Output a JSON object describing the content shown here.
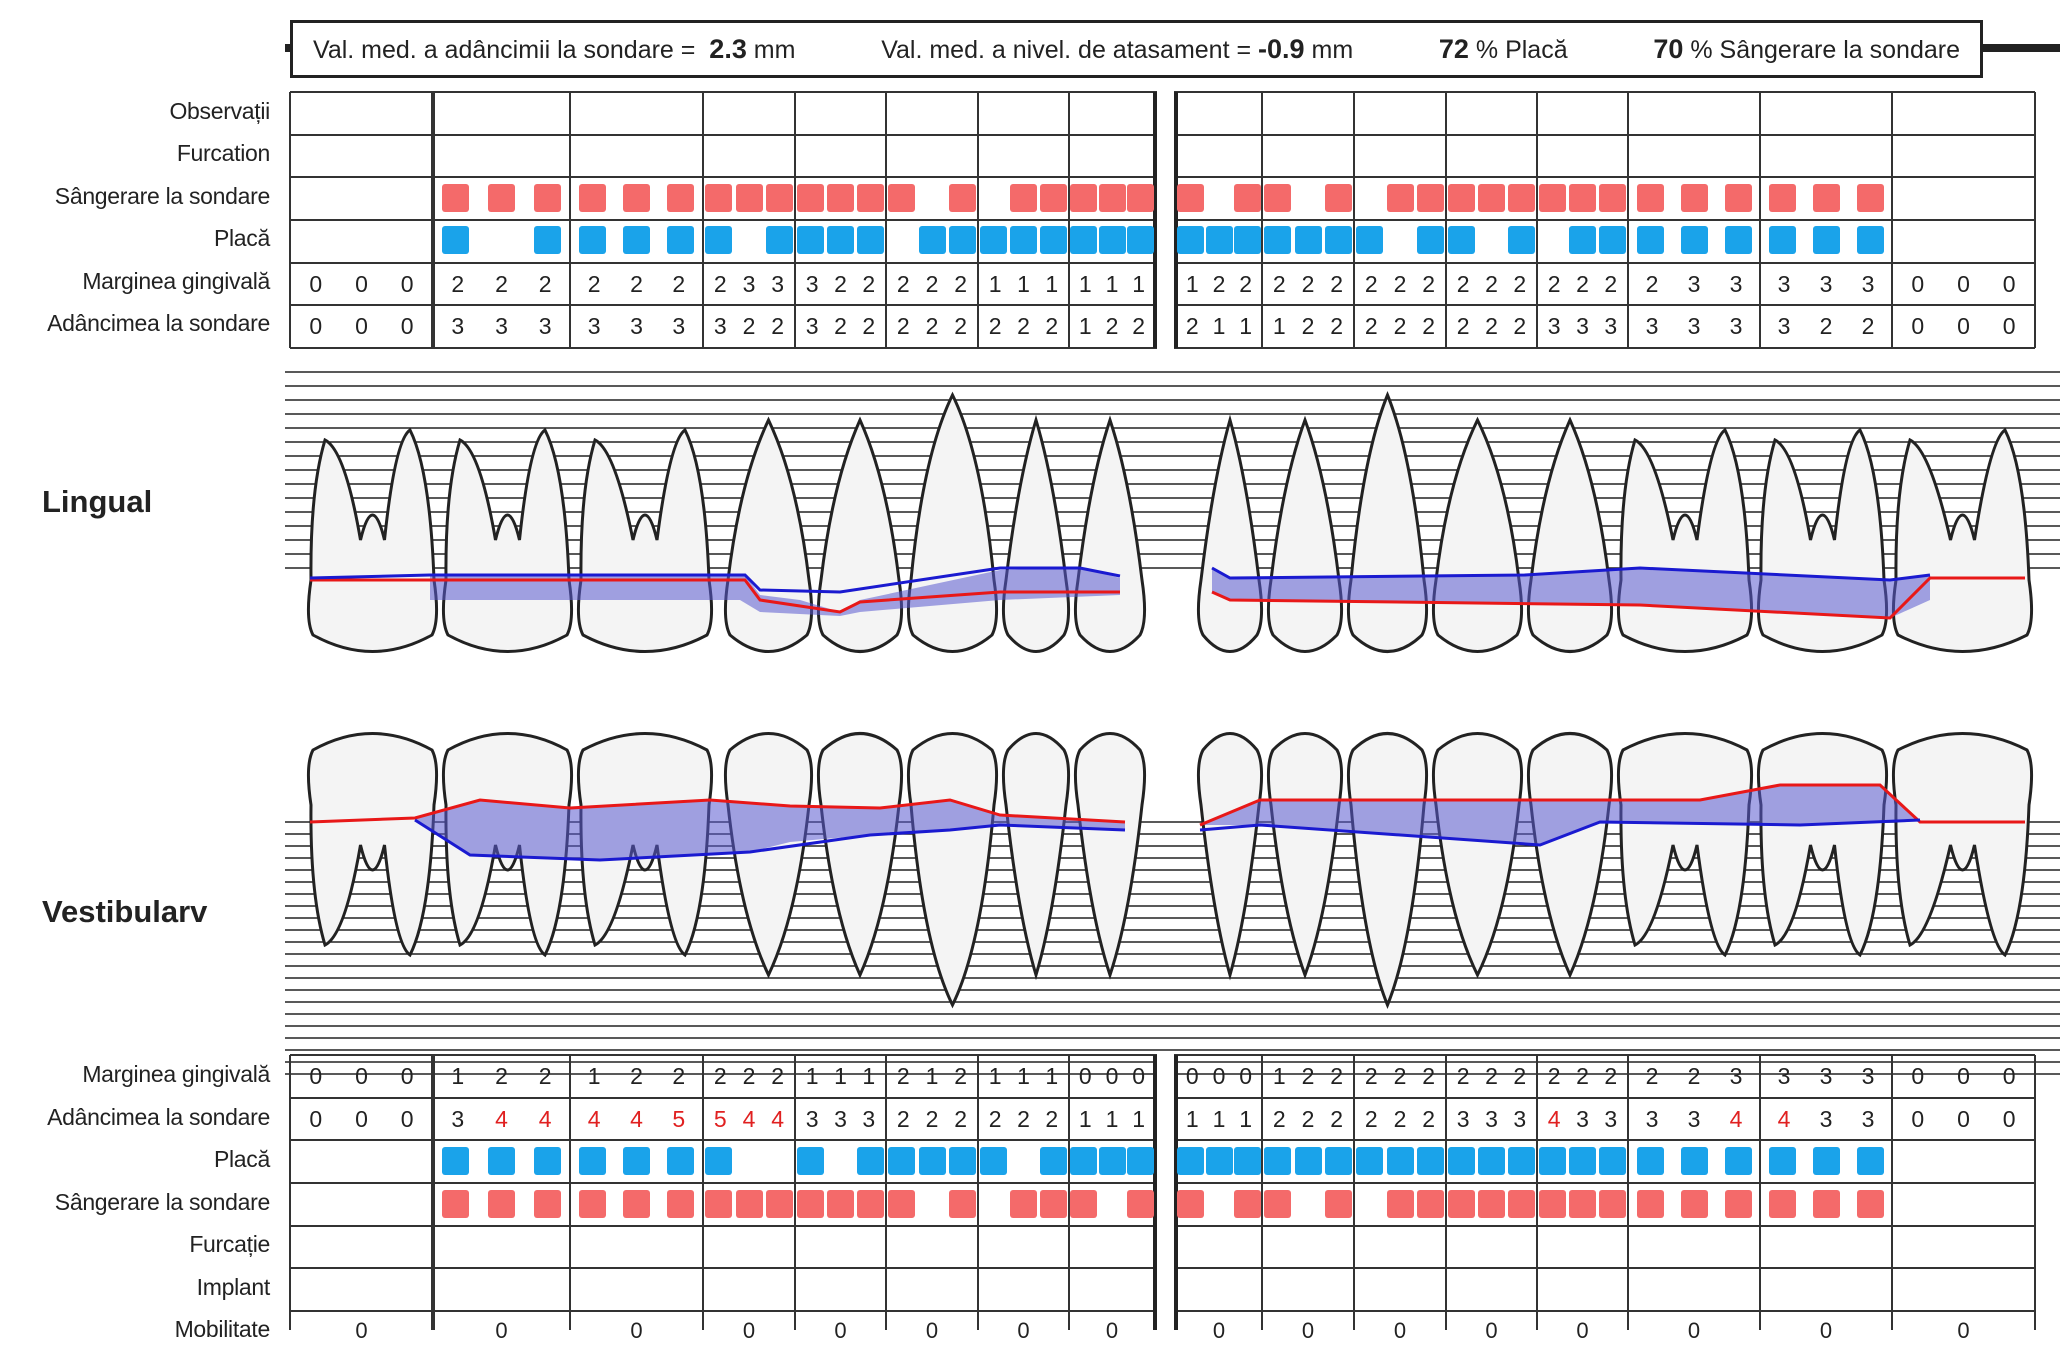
{
  "summary": {
    "depth_label": "Val. med. a adâncimii la sondare =",
    "depth_value": "2.3",
    "depth_unit": "mm",
    "attach_label": "Val. med. a nivel. de atasament =",
    "attach_value": "-0.9",
    "attach_unit": "mm",
    "plaque_value": "72",
    "plaque_label": "% Placă",
    "bleeding_value": "70",
    "bleeding_label": "% Sângerare la sondare"
  },
  "upper_labels": {
    "observatii": "Observații",
    "furcation": "Furcation",
    "sangerare": "Sângerare la sondare",
    "placa": "Placă",
    "marginea": "Marginea gingivală",
    "adancimea": "Adâncimea la sondare"
  },
  "lower_labels": {
    "marginea": "Marginea gingivală",
    "adancimea": "Adâncimea la sondare",
    "placa": "Placă",
    "sangerare": "Sângerare la sondare",
    "furcatie": "Furcație",
    "implant": "Implant",
    "mobilitate": "Mobilitate"
  },
  "side_labels": {
    "lingual": "Lingual",
    "vestibular": "Vestibularv"
  },
  "colors": {
    "bleeding": "#f46a6a",
    "plaque": "#1aa3ea",
    "gum_red": "#e81818",
    "probe_blue": "#1a1ad0",
    "band": "#5a5ad0",
    "red_text": "#e02020"
  },
  "upper": {
    "bleeding": [
      [
        0,
        0,
        0
      ],
      [
        1,
        1,
        1
      ],
      [
        1,
        1,
        1
      ],
      [
        1,
        1,
        1
      ],
      [
        1,
        1,
        1
      ],
      [
        1,
        0,
        1
      ],
      [
        0,
        1,
        1
      ],
      [
        1,
        1,
        1
      ],
      [
        0,
        0,
        0
      ],
      [
        1,
        0,
        1
      ],
      [
        1,
        0,
        1
      ],
      [
        0,
        1,
        1
      ],
      [
        1,
        1,
        1
      ],
      [
        1,
        1,
        1
      ],
      [
        1,
        1,
        1
      ],
      [
        1,
        1,
        1
      ],
      [
        0,
        0,
        0
      ]
    ],
    "plaque": [
      [
        0,
        0,
        0
      ],
      [
        1,
        0,
        1
      ],
      [
        1,
        1,
        1
      ],
      [
        1,
        0,
        1
      ],
      [
        1,
        1,
        1
      ],
      [
        0,
        1,
        1
      ],
      [
        1,
        1,
        1
      ],
      [
        1,
        1,
        1
      ],
      [
        0,
        0,
        0
      ],
      [
        1,
        1,
        1
      ],
      [
        1,
        1,
        1
      ],
      [
        1,
        0,
        1
      ],
      [
        1,
        0,
        1
      ],
      [
        0,
        1,
        1
      ],
      [
        1,
        1,
        1
      ],
      [
        1,
        1,
        1
      ],
      [
        0,
        0,
        0
      ]
    ],
    "margin": [
      [
        "0",
        "0",
        "0"
      ],
      [
        "2",
        "2",
        "2"
      ],
      [
        "2",
        "2",
        "2"
      ],
      [
        "2",
        "3",
        "3"
      ],
      [
        "3",
        "2",
        "2"
      ],
      [
        "2",
        "2",
        "2"
      ],
      [
        "1",
        "1",
        "1"
      ],
      [
        "1",
        "1",
        "1"
      ],
      [
        "",
        "",
        " "
      ],
      [
        "1",
        "2",
        "2"
      ],
      [
        "2",
        "2",
        "2"
      ],
      [
        "2",
        "2",
        "2"
      ],
      [
        "2",
        "2",
        "2"
      ],
      [
        "2",
        "2",
        "2"
      ],
      [
        "2",
        "3",
        "3"
      ],
      [
        "3",
        "3",
        "3"
      ],
      [
        "0",
        "0",
        "0"
      ]
    ],
    "depth": [
      [
        "0",
        "0",
        "0"
      ],
      [
        "3",
        "3",
        "3"
      ],
      [
        "3",
        "3",
        "3"
      ],
      [
        "3",
        "2",
        "2"
      ],
      [
        "3",
        "2",
        "2"
      ],
      [
        "2",
        "2",
        "2"
      ],
      [
        "2",
        "2",
        "2"
      ],
      [
        "1",
        "2",
        "2"
      ],
      [
        "",
        "",
        ""
      ],
      [
        "2",
        "1",
        "1"
      ],
      [
        "1",
        "2",
        "2"
      ],
      [
        "2",
        "2",
        "2"
      ],
      [
        "2",
        "2",
        "2"
      ],
      [
        "3",
        "3",
        "3"
      ],
      [
        "3",
        "3",
        "3"
      ],
      [
        "3",
        "2",
        "2"
      ],
      [
        "0",
        "0",
        "0"
      ]
    ]
  },
  "lower": {
    "margin": [
      [
        "0",
        "0",
        "0"
      ],
      [
        "1",
        "2",
        "2"
      ],
      [
        "1",
        "2",
        "2"
      ],
      [
        "2",
        "2",
        "2"
      ],
      [
        "1",
        "1",
        "1"
      ],
      [
        "2",
        "1",
        "2"
      ],
      [
        "1",
        "1",
        "1"
      ],
      [
        "0",
        "0",
        "0"
      ],
      [
        "",
        "",
        ""
      ],
      [
        "0",
        "0",
        "0"
      ],
      [
        "1",
        "2",
        "2"
      ],
      [
        "2",
        "2",
        "2"
      ],
      [
        "2",
        "2",
        "2"
      ],
      [
        "2",
        "2",
        "2"
      ],
      [
        "2",
        "2",
        "3"
      ],
      [
        "3",
        "3",
        "3"
      ],
      [
        "0",
        "0",
        "0"
      ]
    ],
    "depth": [
      [
        "0",
        "0",
        "0"
      ],
      [
        "3",
        "4",
        "4"
      ],
      [
        "4",
        "4",
        "5"
      ],
      [
        "5",
        "4",
        "4"
      ],
      [
        "3",
        "3",
        "3"
      ],
      [
        "2",
        "2",
        "2"
      ],
      [
        "2",
        "2",
        "2"
      ],
      [
        "1",
        "1",
        "1"
      ],
      [
        "",
        "",
        ""
      ],
      [
        "1",
        "1",
        "1"
      ],
      [
        "2",
        "2",
        "2"
      ],
      [
        "2",
        "2",
        "2"
      ],
      [
        "3",
        "3",
        "3"
      ],
      [
        "4",
        "3",
        "3"
      ],
      [
        "3",
        "3",
        "4"
      ],
      [
        "4",
        "3",
        "3"
      ],
      [
        "0",
        "0",
        "0"
      ]
    ],
    "depth_red": [
      [
        0,
        0,
        0
      ],
      [
        0,
        1,
        1
      ],
      [
        1,
        1,
        1
      ],
      [
        1,
        1,
        1
      ],
      [
        0,
        0,
        0
      ],
      [
        0,
        0,
        0
      ],
      [
        0,
        0,
        0
      ],
      [
        0,
        0,
        0
      ],
      [
        0,
        0,
        0
      ],
      [
        0,
        0,
        0
      ],
      [
        0,
        0,
        0
      ],
      [
        0,
        0,
        0
      ],
      [
        0,
        0,
        0
      ],
      [
        1,
        0,
        0
      ],
      [
        0,
        0,
        1
      ],
      [
        1,
        0,
        0
      ],
      [
        0,
        0,
        0
      ]
    ],
    "plaque": [
      [
        0,
        0,
        0
      ],
      [
        1,
        1,
        1
      ],
      [
        1,
        1,
        1
      ],
      [
        1,
        0,
        0
      ],
      [
        1,
        0,
        1
      ],
      [
        1,
        1,
        1
      ],
      [
        1,
        0,
        1
      ],
      [
        1,
        1,
        1
      ],
      [
        0,
        0,
        0
      ],
      [
        1,
        1,
        1
      ],
      [
        1,
        1,
        1
      ],
      [
        1,
        1,
        1
      ],
      [
        1,
        1,
        1
      ],
      [
        1,
        1,
        1
      ],
      [
        1,
        1,
        1
      ],
      [
        1,
        1,
        1
      ],
      [
        0,
        0,
        0
      ]
    ],
    "bleeding": [
      [
        0,
        0,
        0
      ],
      [
        1,
        1,
        1
      ],
      [
        1,
        1,
        1
      ],
      [
        1,
        1,
        1
      ],
      [
        1,
        1,
        1
      ],
      [
        1,
        0,
        1
      ],
      [
        0,
        1,
        1
      ],
      [
        1,
        0,
        1
      ],
      [
        0,
        0,
        0
      ],
      [
        1,
        0,
        1
      ],
      [
        1,
        0,
        1
      ],
      [
        0,
        1,
        1
      ],
      [
        1,
        1,
        1
      ],
      [
        1,
        1,
        1
      ],
      [
        1,
        1,
        1
      ],
      [
        1,
        1,
        1
      ],
      [
        0,
        0,
        0
      ]
    ],
    "mobility": [
      "0",
      "0",
      "0",
      "0",
      "0",
      "0",
      "0",
      "0",
      "",
      "0",
      "0",
      "0",
      "0",
      "0",
      "0",
      "0",
      "0"
    ]
  }
}
